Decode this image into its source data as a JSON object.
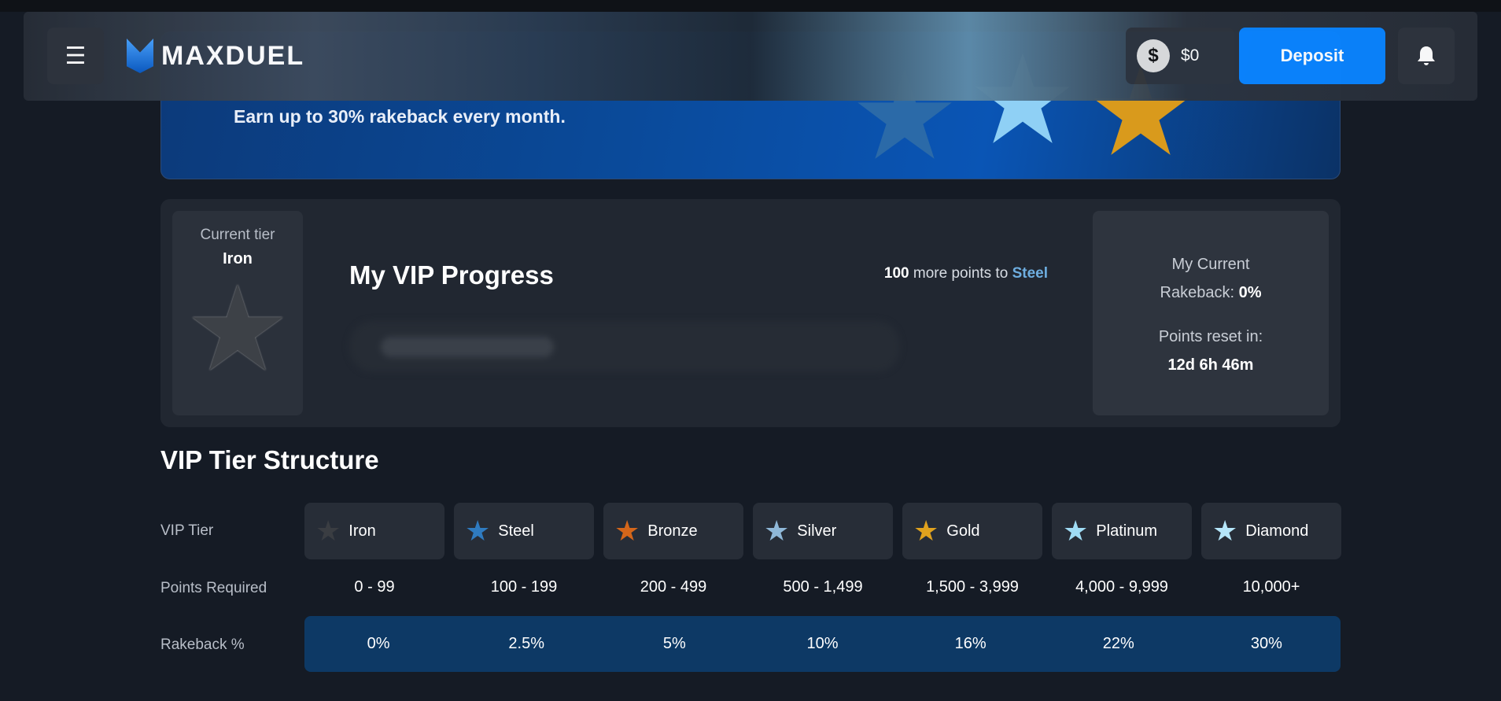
{
  "header": {
    "brand": "MAXDUEL",
    "balance": "$0",
    "coin_symbol": "$",
    "deposit_label": "Deposit"
  },
  "banner": {
    "text": "Earn up to 30% rakeback every month."
  },
  "progress": {
    "current_tier_label": "Current tier",
    "current_tier": "Iron",
    "title": "My VIP Progress",
    "points_needed": "100",
    "points_text": "more points to",
    "next_tier": "Steel",
    "rakeback_label_1": "My Current",
    "rakeback_label_2": "Rakeback:",
    "rakeback_value": "0%",
    "reset_label": "Points reset in:",
    "reset_value": "12d 6h 46m"
  },
  "structure": {
    "title": "VIP Tier Structure",
    "row_labels": [
      "VIP Tier",
      "Points Required",
      "Rakeback %"
    ],
    "tiers": [
      {
        "name": "Iron",
        "points": "0 - 99",
        "rakeback": "0%",
        "color": "#3a3d42"
      },
      {
        "name": "Steel",
        "points": "100 - 199",
        "rakeback": "2.5%",
        "color": "#2f7bc0"
      },
      {
        "name": "Bronze",
        "points": "200 - 499",
        "rakeback": "5%",
        "color": "#d4661a"
      },
      {
        "name": "Silver",
        "points": "500 - 1,499",
        "rakeback": "10%",
        "color": "#8fb8d8"
      },
      {
        "name": "Gold",
        "points": "1,500 - 3,999",
        "rakeback": "16%",
        "color": "#e0a21e"
      },
      {
        "name": "Platinum",
        "points": "4,000 - 9,999",
        "rakeback": "22%",
        "color": "#9fdcf5"
      },
      {
        "name": "Diamond",
        "points": "10,000+",
        "rakeback": "30%",
        "color": "#b5e6fa"
      }
    ]
  }
}
